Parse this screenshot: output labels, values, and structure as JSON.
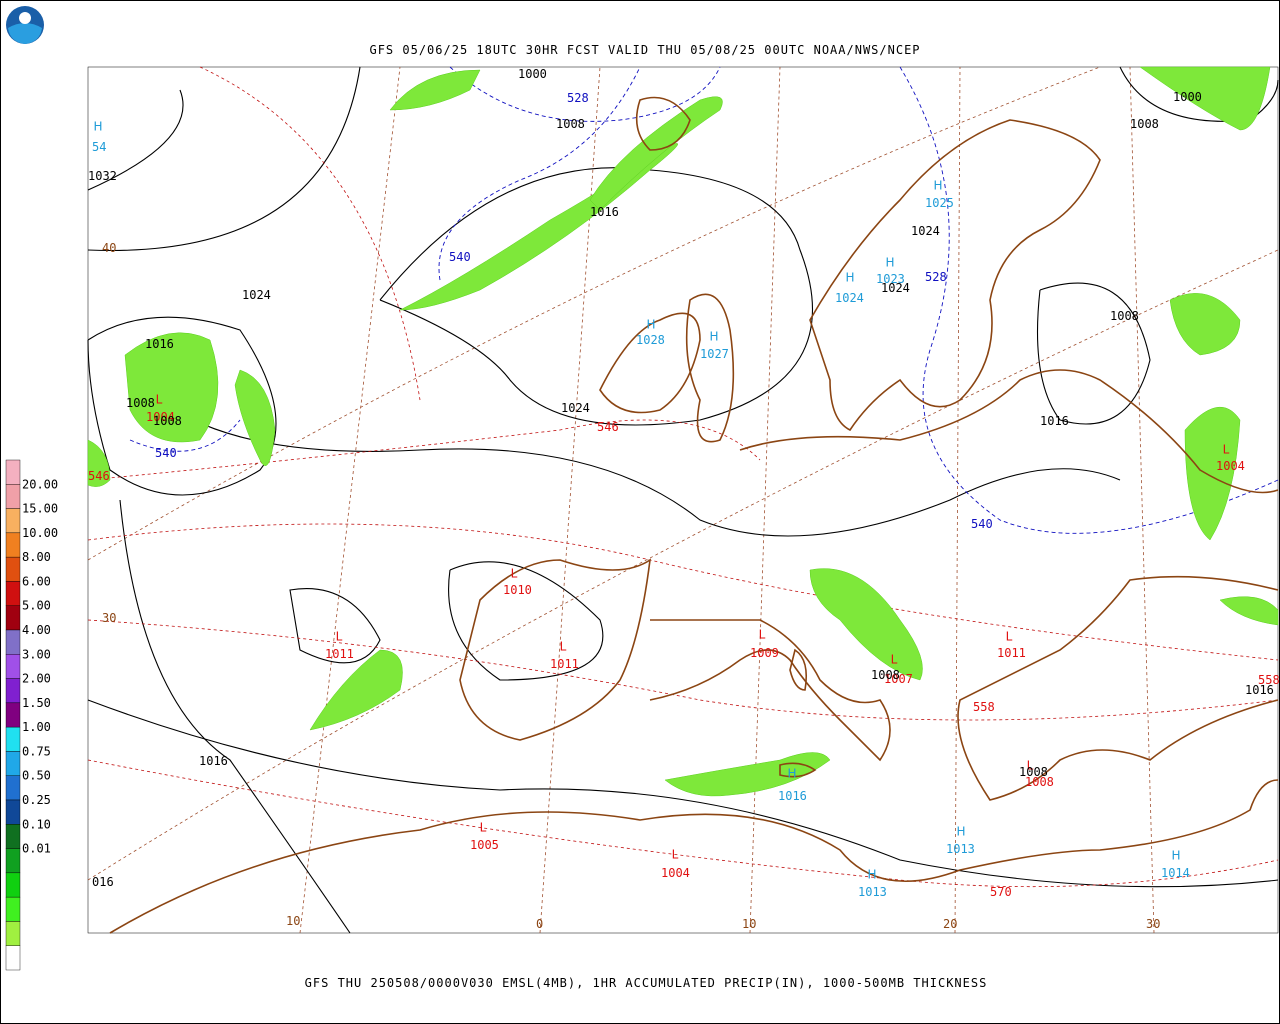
{
  "header": {
    "title": "GFS 05/06/25 18UTC 30HR FCST VALID THU 05/08/25 00UTC NOAA/NWS/NCEP"
  },
  "footer": {
    "caption": "GFS THU 250508/0000V030 EMSL(4MB), 1HR ACCUMULATED PRECIP(IN), 1000-500MB THICKNESS"
  },
  "legend": {
    "labels": [
      "20.00",
      "15.00",
      "10.00",
      "8.00",
      "6.00",
      "5.00",
      "4.00",
      "3.00",
      "2.00",
      "1.50",
      "1.00",
      "0.75",
      "0.50",
      "0.25",
      "0.10",
      "0.01"
    ],
    "colors": [
      "#f4b0c0",
      "#f0a0a8",
      "#f8b060",
      "#f08020",
      "#e05010",
      "#d01010",
      "#a00010",
      "#8070c8",
      "#a050e8",
      "#8020d0",
      "#800080",
      "#20e0f0",
      "#20a8e8",
      "#2070d0",
      "#104898",
      "#107020",
      "#10a020",
      "#10d010",
      "#40f020",
      "#a0f040",
      "#ffffff"
    ]
  },
  "centers": [
    {
      "symbol": "H",
      "value": "54"
    },
    {
      "symbol": "H",
      "value": "1025"
    },
    {
      "symbol": "H",
      "value": "1024"
    },
    {
      "symbol": "H",
      "value": "1023"
    },
    {
      "symbol": "H",
      "value": "1028"
    },
    {
      "symbol": "H",
      "value": "1027"
    },
    {
      "symbol": "L",
      "value": "1004"
    },
    {
      "symbol": "L",
      "value": "1004"
    },
    {
      "symbol": "L",
      "value": "1010"
    },
    {
      "symbol": "L",
      "value": "1011"
    },
    {
      "symbol": "L",
      "value": "1011"
    },
    {
      "symbol": "L",
      "value": "1009"
    },
    {
      "symbol": "L",
      "value": "1007"
    },
    {
      "symbol": "L",
      "value": "1011"
    },
    {
      "symbol": "L",
      "value": "1008"
    },
    {
      "symbol": "H",
      "value": "1016"
    },
    {
      "symbol": "L",
      "value": "1005"
    },
    {
      "symbol": "L",
      "value": "1004"
    },
    {
      "symbol": "H",
      "value": "1013"
    },
    {
      "symbol": "H",
      "value": "1013"
    },
    {
      "symbol": "H",
      "value": "1014"
    }
  ],
  "isobar_labels": [
    "1000",
    "1008",
    "1016",
    "1032",
    "1024",
    "1016",
    "1008",
    "1008",
    "1024",
    "1024",
    "1024",
    "1008",
    "1016",
    "1008",
    "1000",
    "1008",
    "1008",
    "1016",
    "1016",
    "016"
  ],
  "thickness_labels": [
    {
      "text": "528",
      "kind": "cold"
    },
    {
      "text": "540",
      "kind": "cold"
    },
    {
      "text": "540",
      "kind": "cold"
    },
    {
      "text": "528",
      "kind": "cold"
    },
    {
      "text": "540",
      "kind": "cold"
    },
    {
      "text": "546",
      "kind": "warm"
    },
    {
      "text": "546",
      "kind": "warm"
    },
    {
      "text": "558",
      "kind": "warm"
    },
    {
      "text": "570",
      "kind": "warm"
    },
    {
      "text": "558",
      "kind": "warm"
    }
  ],
  "grid_labels": [
    "40",
    "30",
    "10",
    "0",
    "10",
    "20",
    "30"
  ]
}
